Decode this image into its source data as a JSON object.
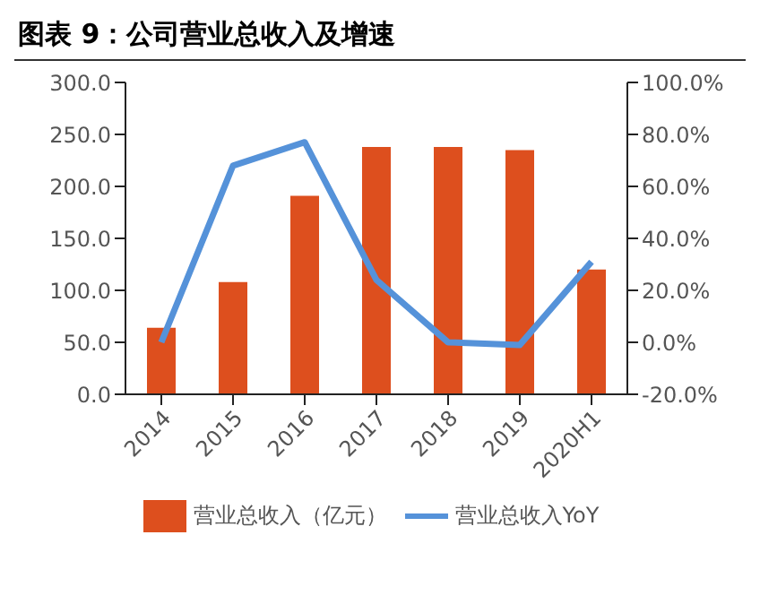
{
  "chart_data": {
    "type": "bar",
    "title": "图表 9：公司营业总收入及增速",
    "categories": [
      "2014",
      "2015",
      "2016",
      "2017",
      "2018",
      "2019",
      "2020H1"
    ],
    "series": [
      {
        "name": "营业总收入（亿元）",
        "color": "#dd4f1e",
        "values": [
          64,
          108,
          191,
          238,
          238,
          235,
          120
        ]
      },
      {
        "name": "营业总收入YoY",
        "type": "line",
        "axis": "y2",
        "color": "#5592d9",
        "values": [
          0,
          68,
          77,
          24,
          0,
          -1,
          31
        ]
      }
    ],
    "ylim": [
      0,
      300
    ],
    "yticks": [
      {
        "value": 0,
        "label": "0.0"
      },
      {
        "value": 50,
        "label": "50.0"
      },
      {
        "value": 100,
        "label": "100.0"
      },
      {
        "value": 150,
        "label": "150.0"
      },
      {
        "value": 200,
        "label": "200.0"
      },
      {
        "value": 250,
        "label": "250.0"
      },
      {
        "value": 300,
        "label": "300.0"
      }
    ],
    "y2lim": [
      -20,
      100
    ],
    "y2ticks": [
      {
        "value": -20,
        "label": "-20.0%"
      },
      {
        "value": 0,
        "label": "0.0%"
      },
      {
        "value": 20,
        "label": "20.0%"
      },
      {
        "value": 40,
        "label": "40.0%"
      },
      {
        "value": 60,
        "label": "60.0%"
      },
      {
        "value": 80,
        "label": "80.0%"
      },
      {
        "value": 100,
        "label": "100.0%"
      }
    ],
    "grid": false,
    "legend": "bottom",
    "marker": "none"
  }
}
